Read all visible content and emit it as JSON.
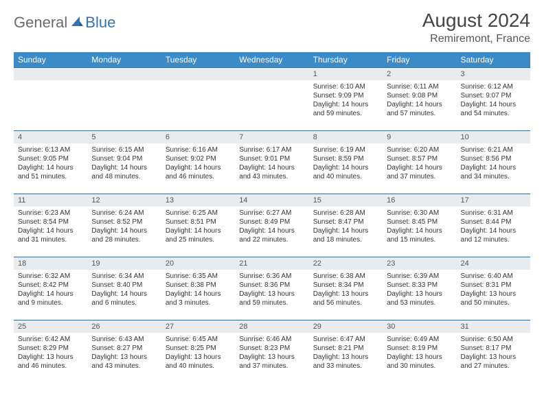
{
  "brand": {
    "part1": "General",
    "part2": "Blue"
  },
  "title": "August 2024",
  "location": "Remiremont, France",
  "colors": {
    "header_bg": "#3b8bc9",
    "header_text": "#ffffff",
    "daynum_bg": "#e9ecef",
    "row_border": "#3b6b8f",
    "brand_gray": "#6b6b6b",
    "brand_blue": "#2f74b5"
  },
  "day_headers": [
    "Sunday",
    "Monday",
    "Tuesday",
    "Wednesday",
    "Thursday",
    "Friday",
    "Saturday"
  ],
  "weeks": [
    [
      {
        "n": "",
        "sr": "",
        "ss": "",
        "dl": ""
      },
      {
        "n": "",
        "sr": "",
        "ss": "",
        "dl": ""
      },
      {
        "n": "",
        "sr": "",
        "ss": "",
        "dl": ""
      },
      {
        "n": "",
        "sr": "",
        "ss": "",
        "dl": ""
      },
      {
        "n": "1",
        "sr": "Sunrise: 6:10 AM",
        "ss": "Sunset: 9:09 PM",
        "dl": "Daylight: 14 hours and 59 minutes."
      },
      {
        "n": "2",
        "sr": "Sunrise: 6:11 AM",
        "ss": "Sunset: 9:08 PM",
        "dl": "Daylight: 14 hours and 57 minutes."
      },
      {
        "n": "3",
        "sr": "Sunrise: 6:12 AM",
        "ss": "Sunset: 9:07 PM",
        "dl": "Daylight: 14 hours and 54 minutes."
      }
    ],
    [
      {
        "n": "4",
        "sr": "Sunrise: 6:13 AM",
        "ss": "Sunset: 9:05 PM",
        "dl": "Daylight: 14 hours and 51 minutes."
      },
      {
        "n": "5",
        "sr": "Sunrise: 6:15 AM",
        "ss": "Sunset: 9:04 PM",
        "dl": "Daylight: 14 hours and 48 minutes."
      },
      {
        "n": "6",
        "sr": "Sunrise: 6:16 AM",
        "ss": "Sunset: 9:02 PM",
        "dl": "Daylight: 14 hours and 46 minutes."
      },
      {
        "n": "7",
        "sr": "Sunrise: 6:17 AM",
        "ss": "Sunset: 9:01 PM",
        "dl": "Daylight: 14 hours and 43 minutes."
      },
      {
        "n": "8",
        "sr": "Sunrise: 6:19 AM",
        "ss": "Sunset: 8:59 PM",
        "dl": "Daylight: 14 hours and 40 minutes."
      },
      {
        "n": "9",
        "sr": "Sunrise: 6:20 AM",
        "ss": "Sunset: 8:57 PM",
        "dl": "Daylight: 14 hours and 37 minutes."
      },
      {
        "n": "10",
        "sr": "Sunrise: 6:21 AM",
        "ss": "Sunset: 8:56 PM",
        "dl": "Daylight: 14 hours and 34 minutes."
      }
    ],
    [
      {
        "n": "11",
        "sr": "Sunrise: 6:23 AM",
        "ss": "Sunset: 8:54 PM",
        "dl": "Daylight: 14 hours and 31 minutes."
      },
      {
        "n": "12",
        "sr": "Sunrise: 6:24 AM",
        "ss": "Sunset: 8:52 PM",
        "dl": "Daylight: 14 hours and 28 minutes."
      },
      {
        "n": "13",
        "sr": "Sunrise: 6:25 AM",
        "ss": "Sunset: 8:51 PM",
        "dl": "Daylight: 14 hours and 25 minutes."
      },
      {
        "n": "14",
        "sr": "Sunrise: 6:27 AM",
        "ss": "Sunset: 8:49 PM",
        "dl": "Daylight: 14 hours and 22 minutes."
      },
      {
        "n": "15",
        "sr": "Sunrise: 6:28 AM",
        "ss": "Sunset: 8:47 PM",
        "dl": "Daylight: 14 hours and 18 minutes."
      },
      {
        "n": "16",
        "sr": "Sunrise: 6:30 AM",
        "ss": "Sunset: 8:45 PM",
        "dl": "Daylight: 14 hours and 15 minutes."
      },
      {
        "n": "17",
        "sr": "Sunrise: 6:31 AM",
        "ss": "Sunset: 8:44 PM",
        "dl": "Daylight: 14 hours and 12 minutes."
      }
    ],
    [
      {
        "n": "18",
        "sr": "Sunrise: 6:32 AM",
        "ss": "Sunset: 8:42 PM",
        "dl": "Daylight: 14 hours and 9 minutes."
      },
      {
        "n": "19",
        "sr": "Sunrise: 6:34 AM",
        "ss": "Sunset: 8:40 PM",
        "dl": "Daylight: 14 hours and 6 minutes."
      },
      {
        "n": "20",
        "sr": "Sunrise: 6:35 AM",
        "ss": "Sunset: 8:38 PM",
        "dl": "Daylight: 14 hours and 3 minutes."
      },
      {
        "n": "21",
        "sr": "Sunrise: 6:36 AM",
        "ss": "Sunset: 8:36 PM",
        "dl": "Daylight: 13 hours and 59 minutes."
      },
      {
        "n": "22",
        "sr": "Sunrise: 6:38 AM",
        "ss": "Sunset: 8:34 PM",
        "dl": "Daylight: 13 hours and 56 minutes."
      },
      {
        "n": "23",
        "sr": "Sunrise: 6:39 AM",
        "ss": "Sunset: 8:33 PM",
        "dl": "Daylight: 13 hours and 53 minutes."
      },
      {
        "n": "24",
        "sr": "Sunrise: 6:40 AM",
        "ss": "Sunset: 8:31 PM",
        "dl": "Daylight: 13 hours and 50 minutes."
      }
    ],
    [
      {
        "n": "25",
        "sr": "Sunrise: 6:42 AM",
        "ss": "Sunset: 8:29 PM",
        "dl": "Daylight: 13 hours and 46 minutes."
      },
      {
        "n": "26",
        "sr": "Sunrise: 6:43 AM",
        "ss": "Sunset: 8:27 PM",
        "dl": "Daylight: 13 hours and 43 minutes."
      },
      {
        "n": "27",
        "sr": "Sunrise: 6:45 AM",
        "ss": "Sunset: 8:25 PM",
        "dl": "Daylight: 13 hours and 40 minutes."
      },
      {
        "n": "28",
        "sr": "Sunrise: 6:46 AM",
        "ss": "Sunset: 8:23 PM",
        "dl": "Daylight: 13 hours and 37 minutes."
      },
      {
        "n": "29",
        "sr": "Sunrise: 6:47 AM",
        "ss": "Sunset: 8:21 PM",
        "dl": "Daylight: 13 hours and 33 minutes."
      },
      {
        "n": "30",
        "sr": "Sunrise: 6:49 AM",
        "ss": "Sunset: 8:19 PM",
        "dl": "Daylight: 13 hours and 30 minutes."
      },
      {
        "n": "31",
        "sr": "Sunrise: 6:50 AM",
        "ss": "Sunset: 8:17 PM",
        "dl": "Daylight: 13 hours and 27 minutes."
      }
    ]
  ]
}
